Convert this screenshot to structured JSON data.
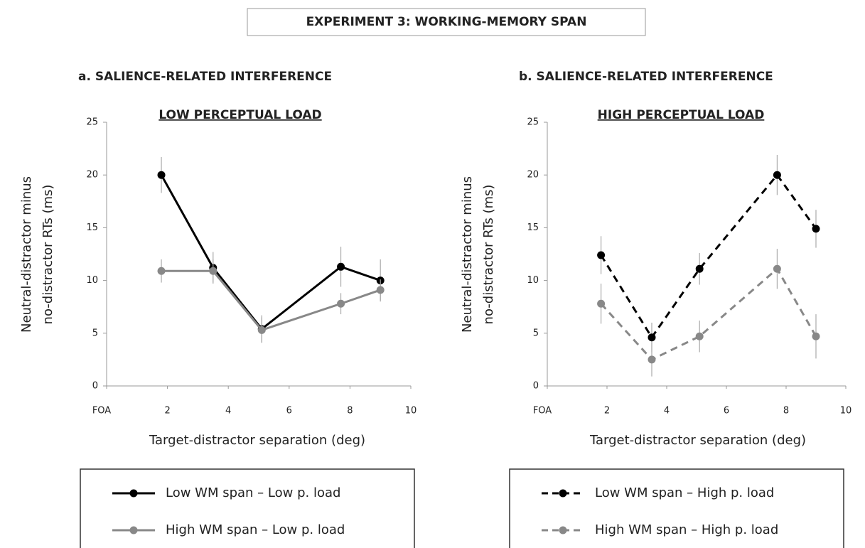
{
  "title": "EXPERIMENT 3:  WORKING-MEMORY SPAN",
  "chart_data": [
    {
      "type": "line",
      "title": "a.  SALIENCE-RELATED INTERFERENCE",
      "subtitle": "LOW  PERCEPTUAL LOAD",
      "ylabel": [
        "Neutral-distractor minus",
        "no-distractor RTs (ms)"
      ],
      "xlabel": "Target-distractor separation (deg)",
      "x": [
        1.8,
        3.5,
        5.1,
        7.7,
        9.0
      ],
      "xlim": [
        0,
        10
      ],
      "xticks": [
        {
          "value": 0,
          "label": "FOA"
        },
        2,
        4,
        6,
        8,
        10
      ],
      "ylim": [
        0,
        25
      ],
      "yticks": [
        0,
        5,
        10,
        15,
        20,
        25
      ],
      "dashed": false,
      "series": [
        {
          "name": "Low  WM span – Low p. load",
          "color": "#000000",
          "values": [
            20,
            11.2,
            5.4,
            11.3,
            10
          ],
          "errors": [
            1.7,
            1.5,
            1.3,
            1.9,
            2.0
          ]
        },
        {
          "name": "High WM span – Low p. load",
          "color": "#888888",
          "values": [
            10.9,
            10.9,
            5.3,
            7.8,
            9.1
          ],
          "errors": [
            1.1,
            1.1,
            1.2,
            1.0,
            1.0
          ]
        }
      ]
    },
    {
      "type": "line",
      "title": "b.   SALIENCE-RELATED INTERFERENCE",
      "subtitle": "HIGH  PERCEPTUAL LOAD",
      "ylabel": [
        "Neutral-distractor minus",
        "no-distractor RTs (ms)"
      ],
      "xlabel": "Target-distractor separation (deg)",
      "x": [
        1.8,
        3.5,
        5.1,
        7.7,
        9.0
      ],
      "xlim": [
        0,
        10
      ],
      "xticks": [
        {
          "value": 0,
          "label": "FOA"
        },
        2,
        4,
        6,
        8,
        10
      ],
      "ylim": [
        0,
        25
      ],
      "yticks": [
        0,
        5,
        10,
        15,
        20,
        25
      ],
      "dashed": true,
      "series": [
        {
          "name": "Low  WM span – High p. load",
          "color": "#000000",
          "values": [
            12.4,
            4.6,
            11.1,
            20,
            14.9
          ],
          "errors": [
            1.8,
            1.4,
            1.5,
            1.9,
            1.8
          ]
        },
        {
          "name": "High WM span – High p. load",
          "color": "#888888",
          "values": [
            7.8,
            2.5,
            4.7,
            11.1,
            4.7
          ],
          "errors": [
            1.9,
            1.6,
            1.5,
            1.9,
            2.1
          ]
        }
      ]
    }
  ]
}
